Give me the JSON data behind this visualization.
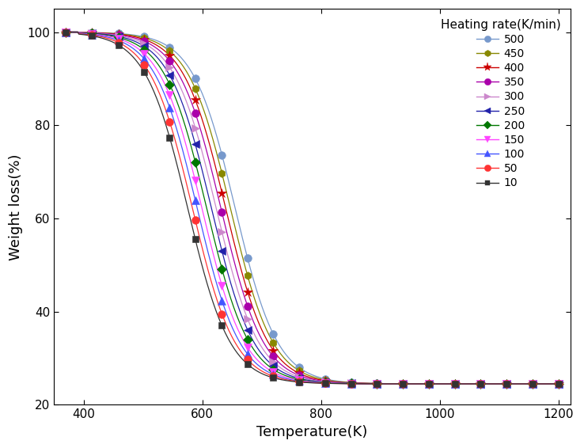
{
  "series": [
    {
      "rate": 500,
      "color": "#7799CC",
      "marker": "o",
      "markersize": 7,
      "shift": 10
    },
    {
      "rate": 450,
      "color": "#888800",
      "marker": "h",
      "markersize": 7,
      "shift": 9
    },
    {
      "rate": 400,
      "color": "#CC0000",
      "marker": "*",
      "markersize": 9,
      "shift": 8
    },
    {
      "rate": 350,
      "color": "#AA00AA",
      "marker": "o",
      "markersize": 7,
      "shift": 7
    },
    {
      "rate": 300,
      "color": "#CC88CC",
      "marker": ">",
      "markersize": 7,
      "shift": 6
    },
    {
      "rate": 250,
      "color": "#2222AA",
      "marker": "<",
      "markersize": 7,
      "shift": 5
    },
    {
      "rate": 200,
      "color": "#007700",
      "marker": "D",
      "markersize": 6,
      "shift": 4
    },
    {
      "rate": 150,
      "color": "#FF44FF",
      "marker": "v",
      "markersize": 7,
      "shift": 3
    },
    {
      "rate": 100,
      "color": "#4455FF",
      "marker": "^",
      "markersize": 7,
      "shift": 2
    },
    {
      "rate": 50,
      "color": "#FF3333",
      "marker": "o",
      "markersize": 7,
      "shift": 1
    },
    {
      "rate": 10,
      "color": "#333333",
      "marker": "s",
      "markersize": 6,
      "shift": 0
    }
  ],
  "xlabel": "Temperature(K)",
  "ylabel": "Weight loss(%)",
  "legend_title": "Heating rate(K/min)",
  "xlim": [
    350,
    1220
  ],
  "ylim": [
    20,
    105
  ],
  "yticks": [
    20,
    40,
    60,
    80,
    100
  ],
  "xticks": [
    400,
    600,
    800,
    1000,
    1200
  ],
  "T0_base": 575,
  "shift_step": 8,
  "k": 0.028,
  "ymin": 24.5,
  "ymax": 100.0,
  "n_markers": 20
}
